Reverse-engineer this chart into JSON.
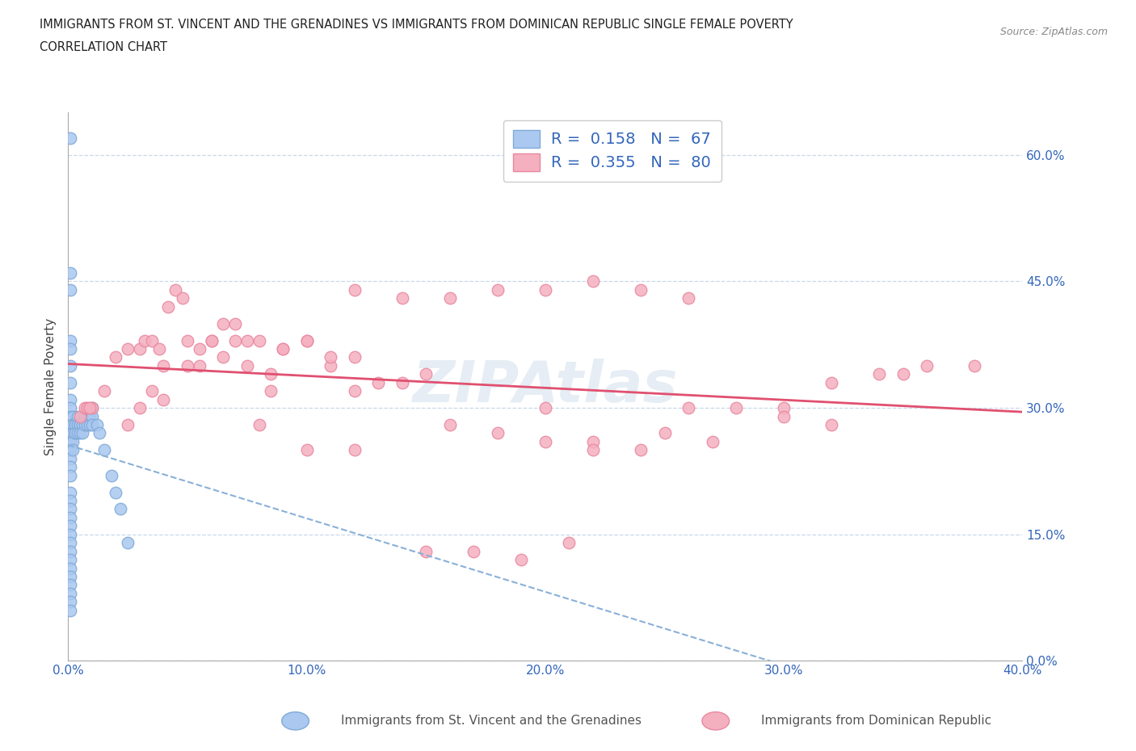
{
  "title_line1": "IMMIGRANTS FROM ST. VINCENT AND THE GRENADINES VS IMMIGRANTS FROM DOMINICAN REPUBLIC SINGLE FEMALE POVERTY",
  "title_line2": "CORRELATION CHART",
  "source_text": "Source: ZipAtlas.com",
  "ylabel": "Single Female Poverty",
  "xlim": [
    0.0,
    0.4
  ],
  "ylim": [
    0.0,
    0.65
  ],
  "xticks": [
    0.0,
    0.1,
    0.2,
    0.3,
    0.4
  ],
  "xticklabels": [
    "0.0%",
    "10.0%",
    "20.0%",
    "30.0%",
    "40.0%"
  ],
  "yticks": [
    0.0,
    0.15,
    0.3,
    0.45,
    0.6
  ],
  "yticklabels": [
    "0.0%",
    "15.0%",
    "30.0%",
    "45.0%",
    "60.0%"
  ],
  "series1_color": "#aac8f0",
  "series1_edge": "#80aad8",
  "series2_color": "#f5b0c0",
  "series2_edge": "#e888a0",
  "trend1_color": "#8ab0d8",
  "trend2_color": "#e05070",
  "R1": 0.158,
  "N1": 67,
  "R2": 0.355,
  "N2": 80,
  "legend1_label": "Immigrants from St. Vincent and the Grenadines",
  "legend2_label": "Immigrants from Dominican Republic",
  "legend_R1": "R =  0.158   N =  67",
  "legend_R2": "R =  0.355   N =  80",
  "watermark": "ZIPAtlas",
  "series1_x": [
    0.001,
    0.001,
    0.001,
    0.001,
    0.001,
    0.001,
    0.001,
    0.001,
    0.001,
    0.001,
    0.001,
    0.001,
    0.001,
    0.001,
    0.001,
    0.001,
    0.001,
    0.001,
    0.002,
    0.002,
    0.002,
    0.002,
    0.002,
    0.002,
    0.002,
    0.003,
    0.003,
    0.003,
    0.003,
    0.004,
    0.004,
    0.004,
    0.005,
    0.005,
    0.005,
    0.006,
    0.006,
    0.007,
    0.007,
    0.008,
    0.008,
    0.009,
    0.009,
    0.01,
    0.01,
    0.01,
    0.012,
    0.013,
    0.015,
    0.018,
    0.02,
    0.022,
    0.025,
    0.001,
    0.001,
    0.001,
    0.001,
    0.001,
    0.001,
    0.001,
    0.001,
    0.001,
    0.001,
    0.001,
    0.001,
    0.001,
    0.001
  ],
  "series1_y": [
    0.62,
    0.46,
    0.44,
    0.38,
    0.37,
    0.35,
    0.33,
    0.31,
    0.3,
    0.29,
    0.28,
    0.27,
    0.26,
    0.25,
    0.24,
    0.23,
    0.22,
    0.2,
    0.29,
    0.28,
    0.28,
    0.27,
    0.27,
    0.26,
    0.25,
    0.28,
    0.28,
    0.27,
    0.27,
    0.29,
    0.28,
    0.27,
    0.28,
    0.28,
    0.27,
    0.28,
    0.27,
    0.29,
    0.28,
    0.29,
    0.28,
    0.29,
    0.28,
    0.3,
    0.29,
    0.28,
    0.28,
    0.27,
    0.25,
    0.22,
    0.2,
    0.18,
    0.14,
    0.19,
    0.18,
    0.17,
    0.16,
    0.15,
    0.14,
    0.13,
    0.12,
    0.11,
    0.1,
    0.09,
    0.08,
    0.07,
    0.06
  ],
  "series2_x": [
    0.01,
    0.015,
    0.02,
    0.025,
    0.03,
    0.032,
    0.035,
    0.038,
    0.04,
    0.042,
    0.045,
    0.048,
    0.05,
    0.055,
    0.06,
    0.065,
    0.07,
    0.075,
    0.08,
    0.085,
    0.09,
    0.1,
    0.11,
    0.12,
    0.13,
    0.14,
    0.15,
    0.16,
    0.18,
    0.2,
    0.22,
    0.24,
    0.26,
    0.28,
    0.3,
    0.32,
    0.34,
    0.35,
    0.36,
    0.38,
    0.005,
    0.007,
    0.008,
    0.009,
    0.12,
    0.14,
    0.16,
    0.18,
    0.2,
    0.22,
    0.24,
    0.26,
    0.06,
    0.07,
    0.08,
    0.09,
    0.1,
    0.11,
    0.12,
    0.05,
    0.04,
    0.035,
    0.03,
    0.025,
    0.2,
    0.22,
    0.25,
    0.27,
    0.3,
    0.32,
    0.15,
    0.17,
    0.19,
    0.21,
    0.1,
    0.12,
    0.055,
    0.065,
    0.075,
    0.085
  ],
  "series2_y": [
    0.3,
    0.32,
    0.36,
    0.37,
    0.37,
    0.38,
    0.38,
    0.37,
    0.35,
    0.42,
    0.44,
    0.43,
    0.38,
    0.35,
    0.38,
    0.4,
    0.38,
    0.38,
    0.28,
    0.32,
    0.37,
    0.38,
    0.35,
    0.36,
    0.33,
    0.33,
    0.34,
    0.28,
    0.27,
    0.3,
    0.26,
    0.25,
    0.3,
    0.3,
    0.3,
    0.33,
    0.34,
    0.34,
    0.35,
    0.35,
    0.29,
    0.3,
    0.3,
    0.3,
    0.44,
    0.43,
    0.43,
    0.44,
    0.44,
    0.45,
    0.44,
    0.43,
    0.38,
    0.4,
    0.38,
    0.37,
    0.38,
    0.36,
    0.32,
    0.35,
    0.31,
    0.32,
    0.3,
    0.28,
    0.26,
    0.25,
    0.27,
    0.26,
    0.29,
    0.28,
    0.13,
    0.13,
    0.12,
    0.14,
    0.25,
    0.25,
    0.37,
    0.36,
    0.35,
    0.34
  ]
}
